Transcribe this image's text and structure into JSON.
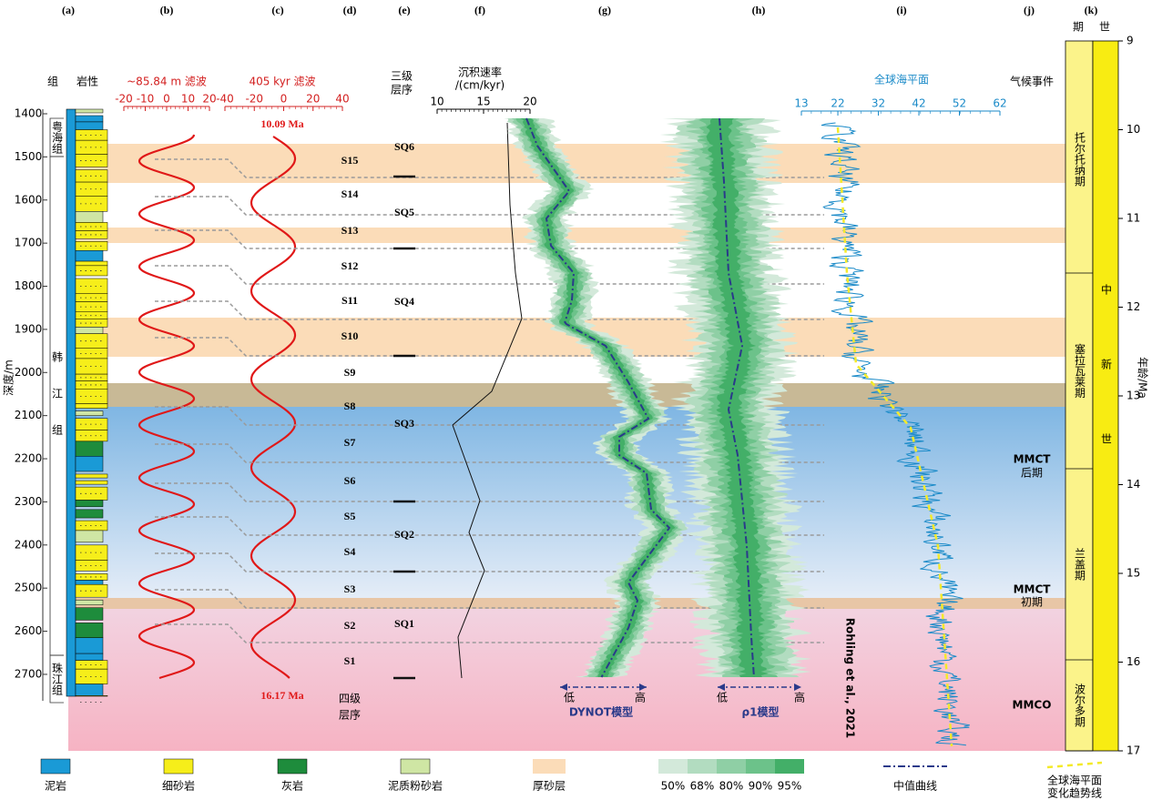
{
  "panel_letters": [
    "(a)",
    "(b)",
    "(c)",
    "(d)",
    "(e)",
    "(f)",
    "(g)",
    "(h)",
    "(i)",
    "(j)",
    "(k)"
  ],
  "column_headers": {
    "formation": "组",
    "lithology": "岩性",
    "filter_b": "~85.84 m 滤波",
    "filter_c": "405 kyr 滤波",
    "third_order": [
      "三级",
      "层序"
    ],
    "rate": [
      "沉积速率",
      "/(cm/kyr)"
    ],
    "sea_level": "全球海平面",
    "climate": "气候事件",
    "stage": "期",
    "epoch": "世"
  },
  "scale_b": [
    -20,
    -10,
    0,
    10,
    20
  ],
  "scale_c": [
    -40,
    -20,
    0,
    20,
    40
  ],
  "scale_f": [
    10,
    15,
    20
  ],
  "scale_i": [
    13,
    22,
    32,
    42,
    52,
    62
  ],
  "depth_axis": {
    "label": "深度/m",
    "ticks": [
      1400,
      1500,
      1600,
      1700,
      1800,
      1900,
      2000,
      2100,
      2200,
      2300,
      2400,
      2500,
      2600,
      2700
    ]
  },
  "age_axis": {
    "label": "年龄/Ma",
    "ticks": [
      9,
      10,
      11,
      12,
      13,
      14,
      15,
      16,
      17
    ]
  },
  "formations": {
    "yuehai": "粤海组",
    "hanjiang": "韩江组",
    "zhujiang": "珠江组"
  },
  "ages": {
    "top": "10.09 Ma",
    "bottom": "16.17 Ma"
  },
  "fourth_order": [
    "四级",
    "层序"
  ],
  "sequences_4": [
    "S1",
    "S2",
    "S3",
    "S4",
    "S5",
    "S6",
    "S7",
    "S8",
    "S9",
    "S10",
    "S11",
    "S12",
    "S13",
    "S14",
    "S15"
  ],
  "sequences_3": [
    "SQ1",
    "SQ2",
    "SQ3",
    "SQ4",
    "SQ5",
    "SQ6"
  ],
  "models": {
    "dynot": "DYNOT模型",
    "rho": "ρ1模型",
    "low": "低",
    "high": "高"
  },
  "citation": "Rohling et al., 2021",
  "stages": [
    "托尔托纳期",
    "塞拉瓦莱期",
    "兰盖期",
    "波尔多期"
  ],
  "epoch": "中新世",
  "events": [
    {
      "name": "MMCT",
      "phase": "后期"
    },
    {
      "name": "MMCT",
      "phase": "初期"
    },
    {
      "name": "MMCO"
    }
  ],
  "legend": {
    "mudstone": "泥岩",
    "fine_sandstone": "细砂岩",
    "limestone": "灰岩",
    "muddy_siltstone": "泥质粉砂岩",
    "thick_sand": "厚砂层",
    "confidence": [
      "50%",
      "68%",
      "80%",
      "90%",
      "95%"
    ],
    "median": "中值曲线",
    "trend": [
      "全球海平面",
      "变化趋势线"
    ]
  }
}
